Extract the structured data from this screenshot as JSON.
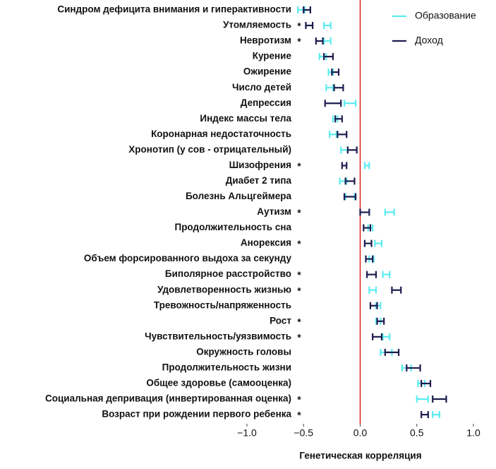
{
  "chart_data": {
    "type": "forest",
    "xlabel": "Генетическая корреляция",
    "categories": [
      "Синдром дефицита внимания и гиперактивности",
      "Утомляемость",
      "Невротизм",
      "Курение",
      "Ожирение",
      "Число детей",
      "Депрессия",
      "Индекс массы тела",
      "Коронарная недостаточность",
      "Хронотип (у сов - отрицательный)",
      "Шизофрения",
      "Диабет 2 типа",
      "Болезнь Альцгеймера",
      "Аутизм",
      "Продолжительность сна",
      "Анорексия",
      "Объем форсированного выдоха за секунду",
      "Биполярное расстройство",
      "Удовлетворенность жизнью",
      "Тревожность/напряженность",
      "Рост",
      "Чувствительность/уязвимость",
      "Окружность головы",
      "Продолжительность жизни",
      "Общее здоровье (самооценка)",
      "Социальная депривация (инвертированная оценка)",
      "Возраст при рождении первого ребенка"
    ],
    "markers": [
      null,
      "*",
      "*",
      null,
      null,
      null,
      null,
      null,
      null,
      null,
      "*",
      null,
      null,
      "*",
      null,
      "*",
      null,
      "*",
      "*",
      null,
      "*",
      "*",
      null,
      null,
      null,
      "*",
      "*"
    ],
    "series": [
      {
        "name": "Образование",
        "color": "#5cecf0",
        "values": [
          -0.52,
          -0.29,
          -0.29,
          -0.33,
          -0.26,
          -0.27,
          -0.09,
          -0.22,
          -0.24,
          -0.14,
          0.06,
          -0.15,
          -0.09,
          0.26,
          0.09,
          0.16,
          0.1,
          0.23,
          0.11,
          0.16,
          0.16,
          0.23,
          0.23,
          0.41,
          0.54,
          0.55,
          0.67
        ],
        "errors": [
          0.03,
          0.03,
          0.03,
          0.03,
          0.02,
          0.03,
          0.05,
          0.02,
          0.03,
          0.03,
          0.02,
          0.03,
          0.04,
          0.04,
          0.02,
          0.03,
          0.02,
          0.03,
          0.03,
          0.02,
          0.02,
          0.03,
          0.05,
          0.04,
          0.03,
          0.05,
          0.03
        ]
      },
      {
        "name": "Доход",
        "color": "#1c1c4f",
        "values": [
          -0.47,
          -0.45,
          -0.36,
          -0.28,
          -0.22,
          -0.19,
          -0.24,
          -0.19,
          -0.16,
          -0.07,
          -0.14,
          -0.09,
          -0.09,
          0.04,
          0.06,
          0.07,
          0.08,
          0.1,
          0.32,
          0.12,
          0.18,
          0.15,
          0.28,
          0.47,
          0.58,
          0.7,
          0.57
        ],
        "errors": [
          0.03,
          0.03,
          0.03,
          0.04,
          0.03,
          0.04,
          0.07,
          0.03,
          0.04,
          0.04,
          0.02,
          0.04,
          0.05,
          0.04,
          0.03,
          0.03,
          0.03,
          0.04,
          0.04,
          0.03,
          0.03,
          0.04,
          0.06,
          0.06,
          0.04,
          0.06,
          0.03
        ]
      }
    ],
    "xlim": [
      -1.1,
      1.1
    ],
    "xticks": [
      {
        "value": -1,
        "label": "−1.0"
      },
      {
        "value": -0.5,
        "label": "−0.5"
      },
      {
        "value": 0,
        "label": "0.0"
      },
      0.5,
      {
        "value": 1,
        "label": "1.0"
      }
    ],
    "refline": 0,
    "refline_color": "#e0201c",
    "legend": "top-right"
  }
}
